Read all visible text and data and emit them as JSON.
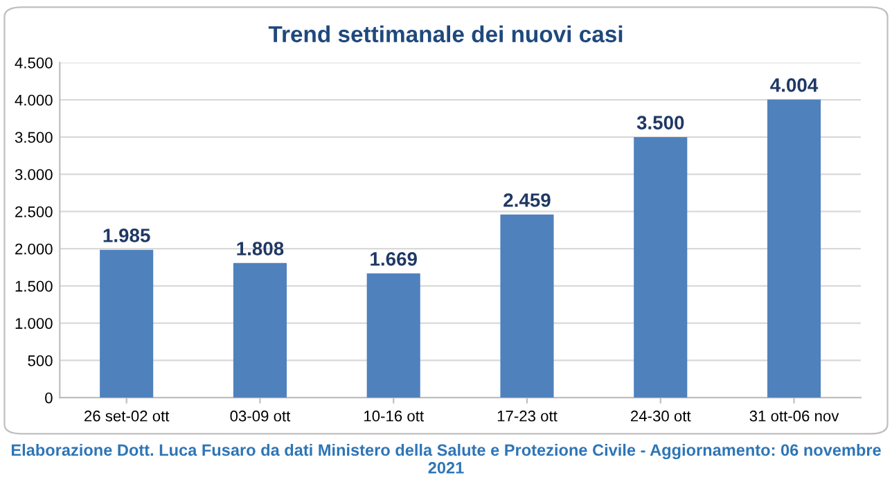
{
  "chart_data": {
    "type": "bar",
    "title": "Trend settimanale dei nuovi casi",
    "categories": [
      "26 set-02 ott",
      "03-09 ott",
      "10-16 ott",
      "17-23 ott",
      "24-30 ott",
      "31 ott-06 nov"
    ],
    "values": [
      1985,
      1808,
      1669,
      2459,
      3500,
      4004
    ],
    "value_labels": [
      "1.985",
      "1.808",
      "1.669",
      "2.459",
      "3.500",
      "4.004"
    ],
    "color": "#4f81bd",
    "ylim": [
      0,
      4500
    ],
    "yticks": [
      0,
      {
        "value": 500,
        "label": "500"
      },
      {
        "value": 1000,
        "label": "1.000"
      },
      {
        "value": 1500,
        "label": "1.500"
      },
      {
        "value": 2000,
        "label": "2.000"
      },
      {
        "value": 2500,
        "label": "2.500"
      },
      {
        "value": 3000,
        "label": "3.000"
      },
      {
        "value": 3500,
        "label": "3.500"
      },
      {
        "value": 4000,
        "label": "4.000"
      },
      {
        "value": 4500,
        "label": "4.500"
      }
    ],
    "grid": "y",
    "annotations": [
      "Elaborazione Dott. Luca Fusaro da dati Ministero della Salute e Protezione Civile - Aggiornamento: 06 novembre 2021"
    ]
  }
}
